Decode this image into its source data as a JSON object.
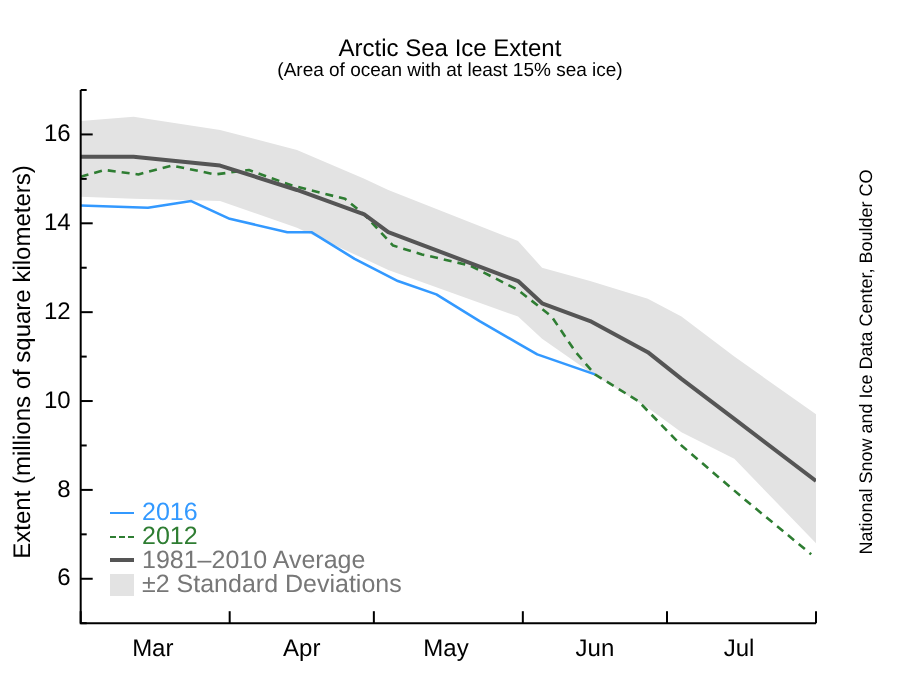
{
  "chart_data": {
    "type": "line",
    "title": "Arctic Sea Ice Extent",
    "subtitle": "(Area of ocean with at least 15% sea ice)",
    "ylabel": "Extent (millions of square kilometers)",
    "annotations": [
      "National Snow and Ice Data Center, Boulder CO",
      "±2 Standard Deviations"
    ],
    "xlim": [
      "--03-01",
      "--08-01"
    ],
    "xticks": [
      {
        "value": "--03-01",
        "label": null
      },
      {
        "value": "--03-16",
        "label": "Mar"
      },
      {
        "value": "--04-01",
        "label": null
      },
      {
        "value": "--04-16",
        "label": "Apr"
      },
      {
        "value": "--05-01",
        "label": null
      },
      {
        "value": "--05-16",
        "label": "May"
      },
      {
        "value": "--06-01",
        "label": null
      },
      {
        "value": "--06-16",
        "label": "Jun"
      },
      {
        "value": "--07-01",
        "label": null
      },
      {
        "value": "--07-16",
        "label": "Jul"
      },
      {
        "value": "--08-01",
        "label": null
      }
    ],
    "ylim": [
      5,
      17
    ],
    "yticks": [
      {
        "value": 5,
        "label": null
      },
      6,
      {
        "value": 7,
        "label": null
      },
      8,
      {
        "value": 9,
        "label": null
      },
      10,
      {
        "value": 11,
        "label": null
      },
      12,
      {
        "value": 13,
        "label": null
      },
      14,
      {
        "value": 15,
        "label": null
      },
      16,
      {
        "value": 17,
        "label": null
      }
    ],
    "legend": "bottom left",
    "series": [
      {
        "name": "2016",
        "color": "#3399ff",
        "line_style": "solid",
        "x": [
          "--03-01",
          "--03-15",
          "--03-24",
          "--04-01",
          "--04-13",
          "--04-18",
          "--04-27",
          "--05-06",
          "--05-14",
          "--05-23",
          "--05-31",
          "--06-04",
          "--06-16"
        ],
        "values": [
          14.4,
          14.35,
          14.5,
          14.1,
          13.8,
          13.8,
          13.2,
          12.7,
          12.4,
          11.8,
          11.3,
          11.05,
          10.6
        ]
      },
      {
        "name": "2012",
        "color": "#2e7d32",
        "line_style": "dashed",
        "x": [
          "--03-01",
          "--03-06",
          "--03-13",
          "--03-20",
          "--03-29",
          "--04-05",
          "--04-14",
          "--04-25",
          "--04-29",
          "--05-05",
          "--05-11",
          "--05-21",
          "--05-31",
          "--06-07",
          "--06-12",
          "--06-16",
          "--06-25",
          "--07-04",
          "--07-17",
          "--07-31"
        ],
        "values": [
          15.05,
          15.2,
          15.1,
          15.3,
          15.1,
          15.2,
          14.85,
          14.55,
          14.2,
          13.5,
          13.3,
          13.05,
          12.5,
          11.9,
          11.1,
          10.6,
          10.0,
          9.0,
          7.8,
          6.55
        ]
      },
      {
        "name": "1981–2010 Average",
        "color": "#555555",
        "line_style": "solid",
        "x": [
          "--03-01",
          "--03-12",
          "--03-30",
          "--04-15",
          "--04-29",
          "--05-04",
          "--05-31",
          "--06-05",
          "--06-15",
          "--06-27",
          "--07-04",
          "--07-15",
          "--08-01"
        ],
        "values": [
          15.5,
          15.5,
          15.3,
          14.75,
          14.2,
          13.8,
          12.7,
          12.2,
          11.8,
          11.1,
          10.5,
          9.6,
          8.2
        ],
        "upper": [
          16.3,
          16.4,
          16.1,
          15.65,
          15.0,
          14.75,
          13.6,
          13.0,
          12.7,
          12.3,
          11.9,
          11.0,
          9.7
        ],
        "lower": [
          14.6,
          14.55,
          14.5,
          13.9,
          13.2,
          12.95,
          11.9,
          11.4,
          10.65,
          9.85,
          9.3,
          8.7,
          6.8
        ]
      }
    ]
  }
}
